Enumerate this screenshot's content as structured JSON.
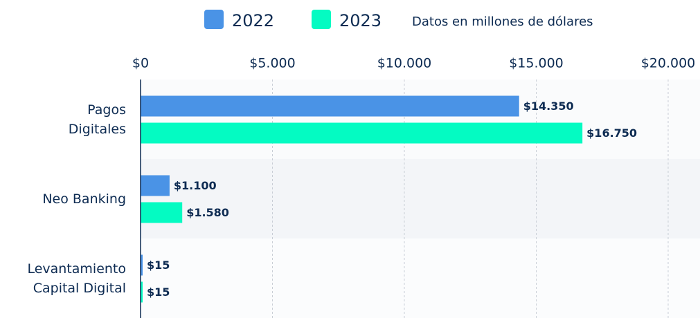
{
  "chart_data": {
    "type": "bar",
    "orientation": "horizontal",
    "note": "Datos en millones de dólares",
    "categories": [
      "Pagos\nDigitales",
      "Neo Banking",
      "Levantamiento\nCapital Digital"
    ],
    "series": [
      {
        "name": "2022",
        "color": "#4a93e6",
        "values": [
          14350,
          1100,
          15
        ],
        "value_labels": [
          "$14.350",
          "$1.100",
          "$15"
        ]
      },
      {
        "name": "2023",
        "color": "#04fbc2",
        "values": [
          16750,
          1580,
          15
        ],
        "value_labels": [
          "$16.750",
          "$1.580",
          "$15"
        ]
      }
    ],
    "xlim": [
      0,
      20000
    ],
    "xticks": [
      {
        "value": 0,
        "label": "$0"
      },
      {
        "value": 5000,
        "label": "$5.000"
      },
      {
        "value": 10000,
        "label": "$10.000"
      },
      {
        "value": 15000,
        "label": "$15.000"
      },
      {
        "value": 20000,
        "label": "$20.000"
      }
    ],
    "grid": true,
    "legend": "top"
  }
}
